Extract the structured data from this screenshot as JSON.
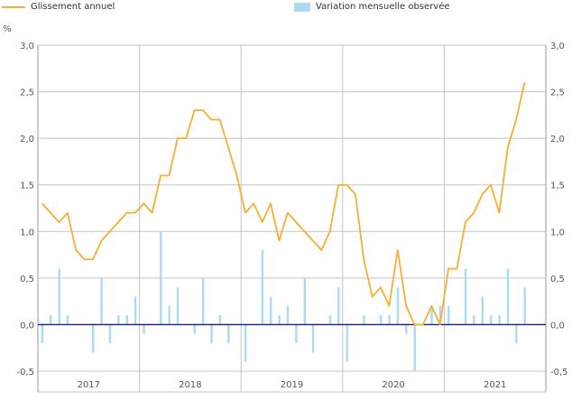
{
  "legend": {
    "line_label": "Glissement annuel",
    "bar_label": "Variation mensuelle observée"
  },
  "unit_label": "%",
  "chart_data": {
    "type": "bar+line",
    "title": "",
    "ylabel": "%",
    "ylim": [
      -0.5,
      3.0
    ],
    "yticks": [
      "-0,5",
      "0,0",
      "0,5",
      "1,0",
      "1,5",
      "2,0",
      "2,5",
      "3,0"
    ],
    "ytick_values": [
      -0.5,
      0,
      0.5,
      1.0,
      1.5,
      2.0,
      2.5,
      3.0
    ],
    "years": [
      "2017",
      "2018",
      "2019",
      "2020",
      "2021"
    ],
    "legend_position": "top-left",
    "series": [
      {
        "name": "Glissement annuel",
        "type": "line",
        "color": "#F7AE32",
        "values": [
          1.3,
          1.2,
          1.1,
          1.2,
          0.8,
          0.7,
          0.7,
          0.9,
          1.0,
          1.1,
          1.2,
          1.2,
          1.3,
          1.2,
          1.6,
          1.6,
          2.0,
          2.0,
          2.3,
          2.3,
          2.2,
          2.2,
          1.9,
          1.6,
          1.2,
          1.3,
          1.1,
          1.3,
          0.9,
          1.2,
          1.1,
          1.0,
          0.9,
          0.8,
          1.0,
          1.5,
          1.5,
          1.4,
          0.7,
          0.3,
          0.4,
          0.2,
          0.8,
          0.2,
          0.0,
          0.0,
          0.2,
          0.0,
          0.6,
          0.6,
          1.1,
          1.2,
          1.4,
          1.5,
          1.2,
          1.9,
          2.2,
          2.6
        ]
      },
      {
        "name": "Variation mensuelle observée",
        "type": "bar",
        "color": "#A9DCF0",
        "values": [
          -0.2,
          0.1,
          0.6,
          0.1,
          0,
          0,
          -0.3,
          0.5,
          -0.2,
          0.1,
          0.1,
          0.3,
          -0.1,
          0,
          1.0,
          0.2,
          0.4,
          0,
          -0.1,
          0.5,
          -0.2,
          0.1,
          -0.2,
          0,
          -0.4,
          0,
          0.8,
          0.3,
          0.1,
          0.2,
          -0.2,
          0.5,
          -0.3,
          0,
          0.1,
          0.4,
          -0.4,
          0,
          0.1,
          0,
          0.1,
          0.1,
          0.4,
          -0.1,
          -0.5,
          0,
          0.2,
          0.2,
          0.2,
          0,
          0.6,
          0.1,
          0.3,
          0.1,
          0.1,
          0.6,
          -0.2,
          0.4
        ]
      }
    ]
  }
}
